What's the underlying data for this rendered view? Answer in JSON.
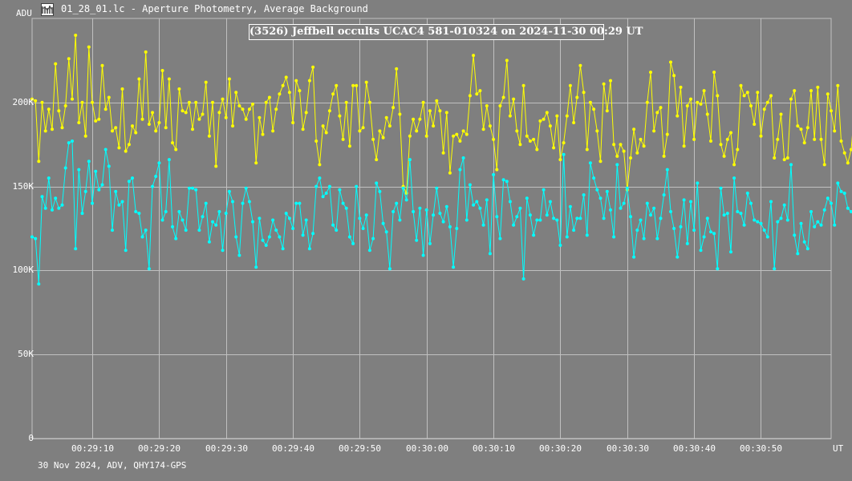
{
  "window": {
    "title": "01_28_01.lc - Aperture Photometry, Average Background",
    "icon": "lightcurve-app-icon"
  },
  "footer": {
    "text": "30 Nov 2024, ADV, QHY174-GPS"
  },
  "colors": {
    "background": "#7f7f7f",
    "grid": "#c0c0c0",
    "comparison_series": "#ffff00",
    "target_series": "#00ffff",
    "text": "#ffffff"
  },
  "chart_data": {
    "type": "line",
    "title": "(3526) Jeffbell occults UCAC4 581-010324 on 2024-11-30  00:29 UT",
    "ylabel": "ADU",
    "xlabel": "UT",
    "ylim": [
      0,
      250000
    ],
    "xlim": [
      "00:29:01.0",
      "00:31:00.5"
    ],
    "grid": true,
    "yticks": [
      {
        "value": 0,
        "label": "0"
      },
      {
        "value": 50000,
        "label": "50K"
      },
      {
        "value": 100000,
        "label": "100K"
      },
      {
        "value": 150000,
        "label": "150K"
      },
      {
        "value": 200000,
        "label": "200K"
      }
    ],
    "xticks": [
      "00:29:10",
      "00:29:20",
      "00:29:30",
      "00:29:40",
      "00:29:50",
      "00:30:00",
      "00:30:10",
      "00:30:20",
      "00:30:30",
      "00:30:40",
      "00:30:50"
    ],
    "x_start": "00:29:01.0",
    "x_step_seconds": 0.5,
    "series": [
      {
        "values": [
          202000,
          201000,
          165000,
          200000,
          183000,
          196000,
          184000,
          223000,
          195000,
          185000,
          198000,
          226000,
          202000,
          240000,
          188000,
          200000,
          180000,
          233000,
          200000,
          189000,
          190000,
          222000,
          196000,
          203000,
          183000,
          185000,
          173000,
          208000,
          171000,
          175000,
          186000,
          182000,
          214000,
          190000,
          230000,
          187000,
          194000,
          183000,
          188000,
          219000,
          185000,
          214000,
          176000,
          172000,
          208000,
          195000,
          194000,
          200000,
          184000,
          200000,
          190000,
          193000,
          212000,
          180000,
          200000,
          162000,
          194000,
          202000,
          191000,
          214000,
          186000,
          206000,
          198000,
          196000,
          190000,
          196000,
          199000,
          164000,
          191000,
          181000,
          200000,
          203000,
          183000,
          196000,
          205000,
          210000,
          215000,
          206000,
          188000,
          213000,
          207000,
          184000,
          194000,
          213000,
          221000,
          177000,
          163000,
          186000,
          182000,
          195000,
          205000,
          210000,
          192000,
          178000,
          200000,
          174000,
          210000,
          210000,
          183000,
          185000,
          212000,
          200000,
          178000,
          166000,
          183000,
          179000,
          191000,
          186000,
          197000,
          220000,
          193000,
          150000,
          146000,
          180000,
          190000,
          183000,
          190000,
          200000,
          180000,
          195000,
          186000,
          201000,
          195000,
          170000,
          194000,
          158000,
          180000,
          181000,
          177000,
          183000,
          181000,
          204000,
          228000,
          205000,
          207000,
          184000,
          198000,
          186000,
          178000,
          160000,
          198000,
          203000,
          225000,
          192000,
          202000,
          183000,
          175000,
          210000,
          180000,
          177000,
          178000,
          172000,
          189000,
          190000,
          194000,
          186000,
          173000,
          192000,
          166000,
          176000,
          192000,
          210000,
          188000,
          203000,
          222000,
          206000,
          172000,
          200000,
          196000,
          183000,
          165000,
          211000,
          195000,
          213000,
          175000,
          168000,
          175000,
          171000,
          148000,
          167000,
          184000,
          170000,
          178000,
          174000,
          200000,
          218000,
          183000,
          194000,
          197000,
          168000,
          181000,
          224000,
          216000,
          192000,
          209000,
          174000,
          198000,
          202000,
          178000,
          200000,
          199000,
          207000,
          193000,
          177000,
          218000,
          204000,
          175000,
          168000,
          178000,
          182000,
          163000,
          172000,
          210000,
          204000,
          206000,
          198000,
          187000,
          206000,
          180000,
          196000,
          200000,
          204000,
          167000,
          178000,
          193000,
          166000,
          167000,
          202000,
          207000,
          186000,
          184000,
          176000,
          185000,
          207000,
          178000,
          209000,
          178000,
          163000,
          205000,
          195000,
          183000,
          210000,
          177000,
          170000,
          164000,
          172000,
          196000,
          213000,
          203000,
          207000,
          189000,
          185000,
          191000,
          197000,
          174000,
          183000,
          170000,
          174000,
          202000,
          188000,
          169000,
          171000,
          169000,
          187000,
          192000,
          193000,
          188000,
          196000,
          199000,
          193000,
          208000,
          191000,
          191000,
          180000,
          176000,
          183000,
          184000,
          173000,
          178000,
          194000,
          199000,
          190000,
          186000,
          187000,
          184000,
          197000,
          183000,
          181000,
          185000,
          178000,
          190000,
          211000,
          216000,
          214000,
          207000,
          200000,
          200000,
          209000,
          207000,
          181000,
          188000,
          176000,
          194000,
          194000,
          195000,
          177000,
          189000,
          162000,
          175000,
          185000,
          189000,
          200000,
          178000,
          183000,
          200000,
          220000,
          198000,
          184000
        ],
        "color": "#ffff00"
      },
      {
        "values": [
          120000,
          119000,
          92000,
          144000,
          137000,
          155000,
          136000,
          143000,
          137000,
          139000,
          161000,
          176000,
          177000,
          113000,
          160000,
          134000,
          147000,
          165000,
          140000,
          159000,
          148000,
          151000,
          172000,
          162000,
          124000,
          147000,
          139000,
          141000,
          112000,
          153000,
          155000,
          135000,
          134000,
          120000,
          124000,
          101000,
          150000,
          156000,
          164000,
          130000,
          135000,
          166000,
          126000,
          119000,
          135000,
          130000,
          124000,
          149000,
          149000,
          148000,
          124000,
          132000,
          140000,
          117000,
          129000,
          127000,
          135000,
          112000,
          134000,
          147000,
          141000,
          120000,
          109000,
          140000,
          149000,
          141000,
          129000,
          102000,
          131000,
          118000,
          115000,
          120000,
          130000,
          124000,
          120000,
          113000,
          134000,
          131000,
          125000,
          140000,
          140000,
          121000,
          130000,
          113000,
          122000,
          150000,
          155000,
          144000,
          146000,
          150000,
          127000,
          124000,
          148000,
          140000,
          137000,
          120000,
          116000,
          150000,
          131000,
          125000,
          133000,
          112000,
          119000,
          152000,
          147000,
          128000,
          123000,
          101000,
          135000,
          140000,
          130000,
          149000,
          142000,
          166000,
          135000,
          118000,
          137000,
          109000,
          136000,
          116000,
          133000,
          149000,
          134000,
          129000,
          138000,
          126000,
          102000,
          125000,
          160000,
          167000,
          130000,
          151000,
          139000,
          141000,
          137000,
          127000,
          142000,
          110000,
          157000,
          132000,
          119000,
          154000,
          153000,
          141000,
          127000,
          132000,
          137000,
          95000,
          143000,
          133000,
          121000,
          130000,
          130000,
          148000,
          133000,
          141000,
          131000,
          130000,
          115000,
          169000,
          120000,
          138000,
          124000,
          131000,
          131000,
          145000,
          121000,
          164000,
          155000,
          148000,
          143000,
          131000,
          147000,
          136000,
          120000,
          163000,
          137000,
          140000,
          149000,
          132000,
          108000,
          124000,
          130000,
          119000,
          140000,
          133000,
          137000,
          119000,
          131000,
          145000,
          160000,
          135000,
          125000,
          108000,
          126000,
          142000,
          116000,
          141000,
          124000,
          152000,
          112000,
          120000,
          131000,
          123000,
          122000,
          101000,
          149000,
          133000,
          134000,
          111000,
          155000,
          135000,
          134000,
          127000,
          146000,
          140000,
          130000,
          129000,
          128000,
          124000,
          120000,
          141000,
          101000,
          129000,
          131000,
          139000,
          130000,
          163000,
          121000,
          110000,
          128000,
          117000,
          113000,
          135000,
          126000,
          129000,
          127000,
          136000,
          143000,
          140000,
          127000,
          152000,
          147000,
          146000,
          137000,
          135000,
          136000,
          110000,
          139000,
          154000,
          135000,
          115000,
          133000,
          120000,
          122000,
          118000,
          113000,
          126000,
          130000,
          146000,
          114000,
          116000,
          127000,
          137000,
          130000,
          121000,
          126000,
          120000,
          114000,
          120000,
          117000,
          137000,
          153000,
          151000,
          125000,
          124000,
          132000,
          115000,
          144000,
          109000,
          106000,
          117000,
          131000,
          145000,
          125000,
          138000,
          132000,
          128000,
          116000,
          127000,
          124000,
          154000,
          136000,
          119000,
          145000,
          143000,
          156000,
          125000,
          147000,
          131000,
          127000,
          137000,
          140000,
          142000,
          139000,
          133000,
          125000,
          109000,
          116000,
          134000,
          154000,
          144000,
          131000,
          128000,
          113000,
          149000,
          132000,
          126000,
          147000,
          133000,
          134000,
          125000,
          116000,
          130000,
          101000,
          124000
        ],
        "color": "#00ffff"
      }
    ]
  }
}
